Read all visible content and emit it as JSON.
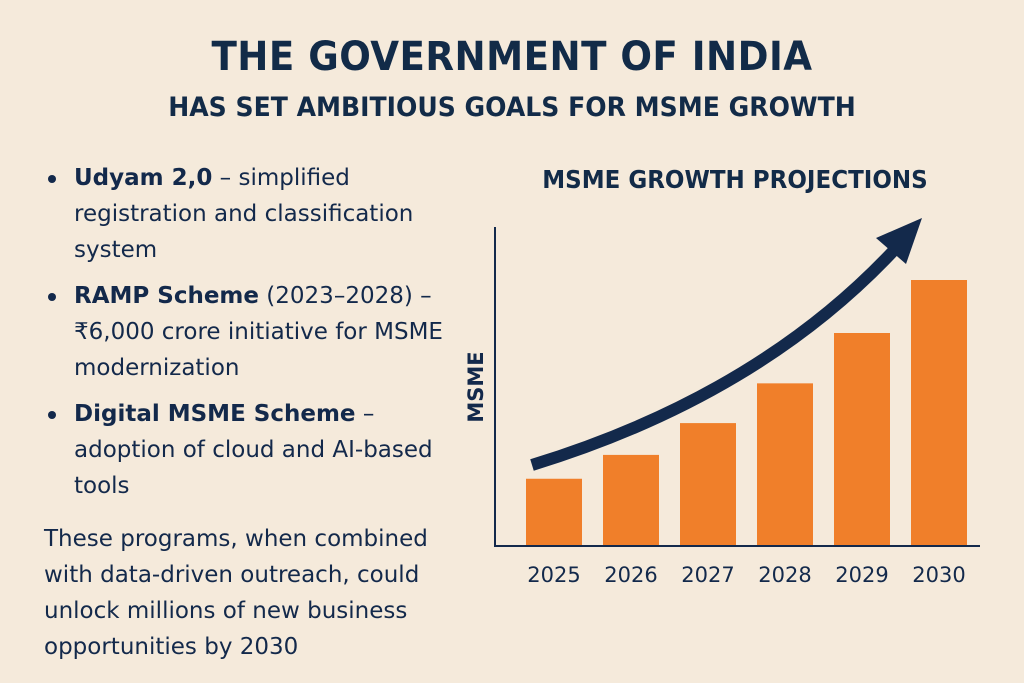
{
  "header": {
    "title": "THE GOVERNMENT OF INDIA",
    "subtitle": "HAS SET AMBITIOUS GOALS FOR MSME GROWTH"
  },
  "bullets": [
    {
      "bold": "Udyam 2,0",
      "text": " – simplified registration and classification system"
    },
    {
      "bold": "RAMP Scheme",
      "text": " (2023–2028) – ₹6,000 crore initiative for MSME modernization"
    },
    {
      "bold": "Digital MSME Scheme",
      "text": " – adoption of cloud and AI-based tools"
    }
  ],
  "summary": "These programs, when combined with data-driven outreach, could unlock millions of new business opportunities by 2030",
  "colors": {
    "background": "#f5eadb",
    "navy": "#13294b",
    "bar": "#f07f2a"
  },
  "chart_data": {
    "type": "bar",
    "title": "MSME GROWTH PROJECTIONS",
    "xlabel": "",
    "ylabel": "MSME",
    "categories": [
      "2025",
      "2026",
      "2027",
      "2028",
      "2029",
      "2030"
    ],
    "values": [
      25,
      34,
      46,
      61,
      80,
      100
    ],
    "ylim": [
      0,
      100
    ],
    "units": "relative index (no y-axis ticks shown)",
    "grid": false,
    "annotations": [
      "upward trend arrow"
    ]
  }
}
